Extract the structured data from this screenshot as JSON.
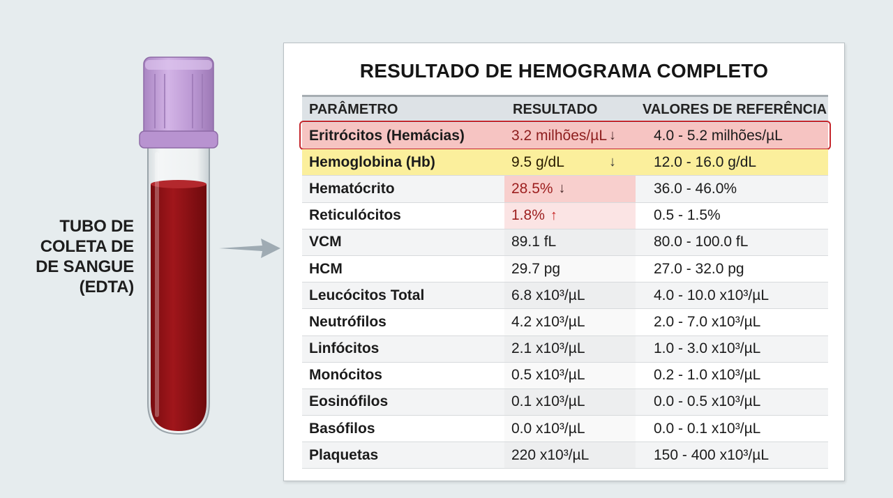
{
  "tube": {
    "label_lines": [
      "TUBO DE",
      "COLETA DE",
      "DE SANGUE",
      "(EDTA)"
    ],
    "cap_color": "#c7a3dc",
    "blood_color": "#9a1217"
  },
  "report": {
    "title": "RESULTADO DE HEMOGRAMA COMPLETO",
    "headers": {
      "parameter": "PARÂMETRO",
      "result": "RESULTADO",
      "reference": "VALORES DE REFERÊNCIA"
    },
    "rows": [
      {
        "parameter": "Eritrócitos (Hemácias)",
        "result": "3.2 milhões/µL",
        "flag": "↓",
        "reference": "4.0 - 5.2 milhões/µL",
        "highlight": "red-outline"
      },
      {
        "parameter": "Hemoglobina (Hb)",
        "result": "9.5 g/dL",
        "flag": "↓",
        "reference": "12.0 - 16.0 g/dL",
        "highlight": "yellow"
      },
      {
        "parameter": "Hematócrito",
        "result": "28.5%",
        "flag": "↓",
        "reference": "36.0 - 46.0%",
        "highlight": "red-cell"
      },
      {
        "parameter": "Reticulócitos",
        "result": "1.8%",
        "flag": "↑",
        "reference": "0.5 - 1.5%",
        "highlight": "soft-cell"
      },
      {
        "parameter": "VCM",
        "result": "89.1 fL",
        "flag": "",
        "reference": "80.0 - 100.0 fL",
        "highlight": ""
      },
      {
        "parameter": "HCM",
        "result": "29.7 pg",
        "flag": "",
        "reference": "27.0 - 32.0 pg",
        "highlight": ""
      },
      {
        "parameter": "Leucócitos Total",
        "result": "6.8 x10³/µL",
        "flag": "",
        "reference": "4.0 - 10.0 x10³/µL",
        "highlight": ""
      },
      {
        "parameter": "Neutrófilos",
        "result": "4.2 x10³/µL",
        "flag": "",
        "reference": "2.0 - 7.0 x10³/µL",
        "highlight": ""
      },
      {
        "parameter": "Linfócitos",
        "result": "2.1 x10³/µL",
        "flag": "",
        "reference": "1.0 - 3.0 x10³/µL",
        "highlight": ""
      },
      {
        "parameter": "Monócitos",
        "result": "0.5 x10³/µL",
        "flag": "",
        "reference": "0.2 - 1.0 x10³/µL",
        "highlight": ""
      },
      {
        "parameter": "Eosinófilos",
        "result": "0.1 x10³/µL",
        "flag": "",
        "reference": "0.0 - 0.5 x10³/µL",
        "highlight": ""
      },
      {
        "parameter": "Basófilos",
        "result": "0.0 x10³/µL",
        "flag": "",
        "reference": "0.0 - 0.1 x10³/µL",
        "highlight": ""
      },
      {
        "parameter": "Plaquetas",
        "result": "220 x10³/µL",
        "flag": "",
        "reference": "150 - 400 x10³/µL",
        "highlight": ""
      }
    ]
  }
}
